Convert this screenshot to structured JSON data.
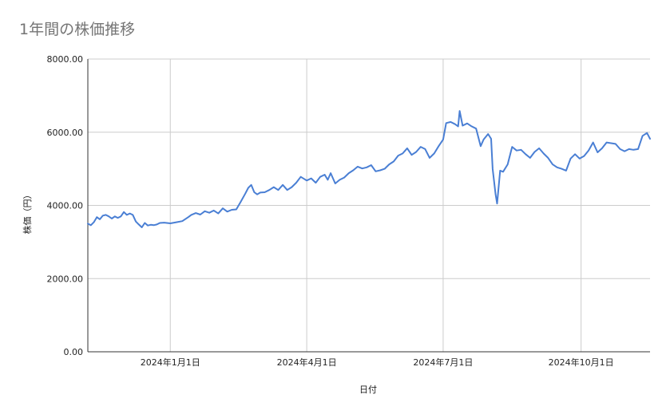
{
  "chart_data": {
    "type": "line",
    "title": "1年間の株価推移",
    "xlabel": "日付",
    "ylabel": "株価（円）",
    "ylim": [
      0,
      8000
    ],
    "yticks": [
      "0.00",
      "2000.00",
      "4000.00",
      "6000.00",
      "8000.00"
    ],
    "xticks": [
      {
        "date": "2024-01-01",
        "label": "2024年1月1日"
      },
      {
        "date": "2024-04-01",
        "label": "2024年4月1日"
      },
      {
        "date": "2024-07-01",
        "label": "2024年7月1日"
      },
      {
        "date": "2024-10-01",
        "label": "2024年10月1日"
      }
    ],
    "xlim": [
      "2023-11-07",
      "2024-11-16"
    ],
    "grid": true,
    "colors": {
      "line": "#4a7fd4",
      "grid": "#cccccc",
      "axis": "#333333"
    },
    "series": [
      {
        "x": [
          "2023-11-07",
          "2023-11-09",
          "2023-11-11",
          "2023-11-13",
          "2023-11-15",
          "2023-11-17",
          "2023-11-19",
          "2023-11-21",
          "2023-11-23",
          "2023-11-25",
          "2023-11-27",
          "2023-11-29",
          "2023-12-01",
          "2023-12-03",
          "2023-12-05",
          "2023-12-07",
          "2023-12-09",
          "2023-12-11",
          "2023-12-13",
          "2023-12-15",
          "2023-12-17",
          "2023-12-19",
          "2023-12-21",
          "2023-12-23",
          "2023-12-25",
          "2023-12-28",
          "2024-01-01",
          "2024-01-05",
          "2024-01-09",
          "2024-01-13",
          "2024-01-15",
          "2024-01-18",
          "2024-01-21",
          "2024-01-24",
          "2024-01-27",
          "2024-01-30",
          "2024-02-02",
          "2024-02-05",
          "2024-02-08",
          "2024-02-11",
          "2024-02-14",
          "2024-02-17",
          "2024-02-20",
          "2024-02-22",
          "2024-02-24",
          "2024-02-26",
          "2024-02-28",
          "2024-03-01",
          "2024-03-04",
          "2024-03-07",
          "2024-03-10",
          "2024-03-13",
          "2024-03-16",
          "2024-03-19",
          "2024-03-22",
          "2024-03-25",
          "2024-03-28",
          "2024-04-01",
          "2024-04-04",
          "2024-04-07",
          "2024-04-10",
          "2024-04-13",
          "2024-04-15",
          "2024-04-17",
          "2024-04-20",
          "2024-04-23",
          "2024-04-26",
          "2024-04-29",
          "2024-05-02",
          "2024-05-05",
          "2024-05-08",
          "2024-05-11",
          "2024-05-14",
          "2024-05-17",
          "2024-05-20",
          "2024-05-23",
          "2024-05-26",
          "2024-05-29",
          "2024-06-01",
          "2024-06-04",
          "2024-06-07",
          "2024-06-10",
          "2024-06-13",
          "2024-06-16",
          "2024-06-19",
          "2024-06-22",
          "2024-06-25",
          "2024-06-28",
          "2024-07-01",
          "2024-07-03",
          "2024-07-06",
          "2024-07-09",
          "2024-07-11",
          "2024-07-12",
          "2024-07-14",
          "2024-07-17",
          "2024-07-20",
          "2024-07-23",
          "2024-07-26",
          "2024-07-28",
          "2024-07-31",
          "2024-08-02",
          "2024-08-03",
          "2024-08-05",
          "2024-08-06",
          "2024-08-08",
          "2024-08-10",
          "2024-08-13",
          "2024-08-16",
          "2024-08-19",
          "2024-08-22",
          "2024-08-25",
          "2024-08-28",
          "2024-08-31",
          "2024-09-03",
          "2024-09-06",
          "2024-09-09",
          "2024-09-12",
          "2024-09-15",
          "2024-09-18",
          "2024-09-21",
          "2024-09-24",
          "2024-09-27",
          "2024-09-30",
          "2024-10-03",
          "2024-10-06",
          "2024-10-09",
          "2024-10-12",
          "2024-10-15",
          "2024-10-18",
          "2024-10-21",
          "2024-10-24",
          "2024-10-27",
          "2024-10-30",
          "2024-11-02",
          "2024-11-05",
          "2024-11-08",
          "2024-11-11",
          "2024-11-14",
          "2024-11-16"
        ],
        "y": [
          3500,
          3460,
          3540,
          3680,
          3620,
          3720,
          3740,
          3700,
          3640,
          3700,
          3660,
          3700,
          3820,
          3740,
          3780,
          3740,
          3560,
          3480,
          3400,
          3520,
          3450,
          3470,
          3460,
          3480,
          3520,
          3530,
          3510,
          3540,
          3570,
          3680,
          3740,
          3790,
          3750,
          3840,
          3800,
          3860,
          3780,
          3920,
          3830,
          3880,
          3890,
          4100,
          4320,
          4480,
          4560,
          4360,
          4300,
          4350,
          4360,
          4420,
          4500,
          4420,
          4560,
          4420,
          4500,
          4620,
          4780,
          4680,
          4740,
          4620,
          4780,
          4840,
          4700,
          4880,
          4600,
          4700,
          4760,
          4880,
          4960,
          5060,
          5010,
          5040,
          5100,
          4930,
          4960,
          5000,
          5120,
          5200,
          5360,
          5420,
          5560,
          5380,
          5460,
          5600,
          5540,
          5300,
          5420,
          5620,
          5800,
          6250,
          6280,
          6220,
          6160,
          6580,
          6180,
          6240,
          6160,
          6100,
          5620,
          5800,
          5950,
          5820,
          5000,
          4300,
          4050,
          4950,
          4920,
          5120,
          5600,
          5500,
          5520,
          5400,
          5300,
          5460,
          5560,
          5420,
          5300,
          5120,
          5040,
          5000,
          4950,
          5280,
          5400,
          5280,
          5350,
          5500,
          5720,
          5450,
          5560,
          5720,
          5700,
          5680,
          5540,
          5480,
          5540,
          5520,
          5540,
          5900,
          5980,
          5820
        ]
      }
    ]
  }
}
